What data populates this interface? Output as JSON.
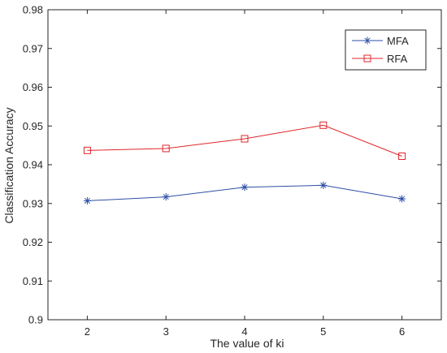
{
  "chart_data": {
    "type": "line",
    "title": "",
    "xlabel": "The value of ki",
    "ylabel": "Classification Accuracy",
    "x": [
      2,
      3,
      4,
      5,
      6
    ],
    "xlim": [
      1.5,
      6.5
    ],
    "ylim": [
      0.9,
      0.98
    ],
    "x_ticks": [
      "2",
      "3",
      "4",
      "5",
      "6"
    ],
    "y_ticks": [
      "0.9",
      "0.91",
      "0.92",
      "0.93",
      "0.94",
      "0.95",
      "0.96",
      "0.97",
      "0.98"
    ],
    "grid": false,
    "legend_position": "top-right",
    "series": [
      {
        "name": "MFA",
        "values": [
          0.9307,
          0.9317,
          0.9342,
          0.9347,
          0.9312
        ],
        "color": "#2e4fa8",
        "marker": "asterisk"
      },
      {
        "name": "RFA",
        "values": [
          0.9437,
          0.9442,
          0.9467,
          0.9502,
          0.9422
        ],
        "color": "#e0262b",
        "marker": "square"
      }
    ]
  }
}
